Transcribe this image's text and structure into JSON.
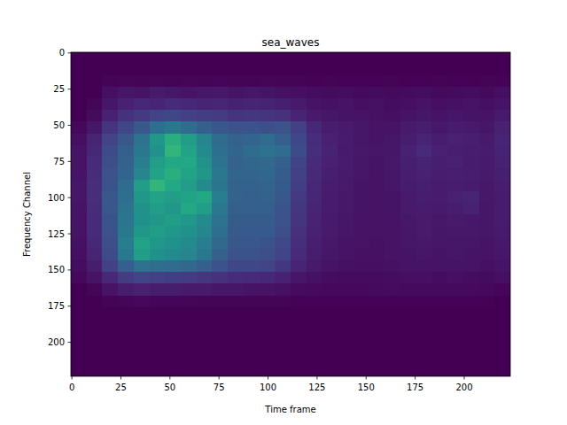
{
  "chart_data": {
    "type": "heatmap",
    "title": "sea_waves",
    "x_label": "Time frame",
    "y_label": "Frequency Channel",
    "xlim": [
      -0.5,
      223.5
    ],
    "ylim": [
      223.5,
      -0.5
    ],
    "xticks": [
      0,
      25,
      50,
      75,
      100,
      125,
      150,
      175,
      200
    ],
    "yticks": [
      0,
      25,
      50,
      75,
      100,
      125,
      150,
      175,
      200
    ],
    "x_bins": [
      -0.5,
      7.5,
      15.5,
      23.5,
      31.5,
      39.5,
      47.5,
      55.5,
      63.5,
      71.5,
      79.5,
      87.5,
      95.5,
      103.5,
      111.5,
      119.5,
      127.5,
      135.5,
      143.5,
      151.5,
      159.5,
      167.5,
      175.5,
      183.5,
      191.5,
      199.5,
      207.5,
      215.5,
      223.5
    ],
    "y_bins": [
      -0.5,
      7.5,
      15.5,
      23.5,
      31.5,
      39.5,
      47.5,
      55.5,
      63.5,
      71.5,
      79.5,
      87.5,
      95.5,
      103.5,
      111.5,
      119.5,
      127.5,
      135.5,
      143.5,
      151.5,
      159.5,
      167.5,
      175.5,
      183.5,
      191.5,
      199.5,
      207.5,
      215.5,
      223.5
    ],
    "color_range": [
      0,
      2
    ],
    "cells": [
      [
        0,
        0,
        0,
        0,
        0,
        0,
        0,
        0,
        0,
        0,
        0,
        0,
        0,
        0,
        0,
        0,
        0,
        0,
        0,
        0,
        0,
        0,
        0,
        0,
        0,
        0,
        0,
        0
      ],
      [
        0,
        0,
        0,
        0,
        0,
        0,
        0,
        0,
        0,
        0,
        0,
        0,
        0,
        0,
        0,
        0,
        0,
        0,
        0,
        0,
        0,
        0,
        0,
        0,
        0,
        0,
        0,
        0
      ],
      [
        0,
        0,
        0.02,
        0.03,
        0.02,
        0.03,
        0.02,
        0.03,
        0.02,
        0.03,
        0.02,
        0.02,
        0.03,
        0.02,
        0.02,
        0.01,
        0.02,
        0.01,
        0.01,
        0.01,
        0.02,
        0.01,
        0.01,
        0.02,
        0.01,
        0.01,
        0.02,
        0.01
      ],
      [
        0,
        0,
        0.08,
        0.12,
        0.1,
        0.14,
        0.12,
        0.1,
        0.12,
        0.13,
        0.1,
        0.12,
        0.11,
        0.09,
        0.08,
        0.07,
        0.06,
        0.07,
        0.05,
        0.06,
        0.05,
        0.06,
        0.07,
        0.05,
        0.06,
        0.07,
        0.05,
        0.08
      ],
      [
        0,
        0.03,
        0.12,
        0.18,
        0.22,
        0.2,
        0.24,
        0.22,
        0.2,
        0.21,
        0.18,
        0.2,
        0.19,
        0.17,
        0.14,
        0.1,
        0.09,
        0.1,
        0.08,
        0.09,
        0.07,
        0.08,
        0.1,
        0.08,
        0.09,
        0.1,
        0.08,
        0.11
      ],
      [
        0,
        0.06,
        0.18,
        0.28,
        0.34,
        0.4,
        0.42,
        0.38,
        0.36,
        0.35,
        0.3,
        0.32,
        0.3,
        0.28,
        0.2,
        0.14,
        0.12,
        0.11,
        0.1,
        0.09,
        0.08,
        0.11,
        0.12,
        0.1,
        0.12,
        0.11,
        0.1,
        0.14
      ],
      [
        0.04,
        0.12,
        0.3,
        0.42,
        0.55,
        0.72,
        0.8,
        0.7,
        0.6,
        0.55,
        0.5,
        0.5,
        0.48,
        0.5,
        0.38,
        0.22,
        0.16,
        0.14,
        0.12,
        0.1,
        0.1,
        0.14,
        0.16,
        0.13,
        0.15,
        0.14,
        0.12,
        0.18
      ],
      [
        0.08,
        0.2,
        0.4,
        0.55,
        0.75,
        1.05,
        1.25,
        1.1,
        0.9,
        0.7,
        0.62,
        0.65,
        0.7,
        0.6,
        0.42,
        0.25,
        0.18,
        0.15,
        0.12,
        0.11,
        0.12,
        0.16,
        0.2,
        0.16,
        0.18,
        0.17,
        0.14,
        0.2
      ],
      [
        0.1,
        0.22,
        0.45,
        0.6,
        0.8,
        1.0,
        1.3,
        1.15,
        0.95,
        0.72,
        0.65,
        0.7,
        0.75,
        0.7,
        0.45,
        0.26,
        0.19,
        0.14,
        0.13,
        0.12,
        0.12,
        0.18,
        0.24,
        0.18,
        0.17,
        0.16,
        0.15,
        0.19
      ],
      [
        0.1,
        0.24,
        0.48,
        0.62,
        0.85,
        1.1,
        1.2,
        1.2,
        1.0,
        0.75,
        0.62,
        0.66,
        0.68,
        0.6,
        0.4,
        0.24,
        0.18,
        0.15,
        0.12,
        0.11,
        0.13,
        0.17,
        0.19,
        0.17,
        0.18,
        0.15,
        0.14,
        0.18
      ],
      [
        0.11,
        0.25,
        0.5,
        0.65,
        0.9,
        1.15,
        1.25,
        1.15,
        1.05,
        0.8,
        0.64,
        0.64,
        0.66,
        0.58,
        0.38,
        0.23,
        0.17,
        0.14,
        0.12,
        0.1,
        0.12,
        0.16,
        0.18,
        0.16,
        0.17,
        0.16,
        0.14,
        0.17
      ],
      [
        0.12,
        0.26,
        0.52,
        0.7,
        1.1,
        1.3,
        1.2,
        1.1,
        0.95,
        0.78,
        0.63,
        0.62,
        0.64,
        0.56,
        0.36,
        0.22,
        0.16,
        0.14,
        0.11,
        0.1,
        0.12,
        0.15,
        0.17,
        0.15,
        0.16,
        0.15,
        0.13,
        0.16
      ],
      [
        0.12,
        0.26,
        0.55,
        0.72,
        1.05,
        1.15,
        1.1,
        1.15,
        1.2,
        0.85,
        0.62,
        0.6,
        0.62,
        0.55,
        0.34,
        0.21,
        0.15,
        0.13,
        0.11,
        0.1,
        0.11,
        0.14,
        0.16,
        0.15,
        0.18,
        0.2,
        0.13,
        0.15
      ],
      [
        0.11,
        0.25,
        0.55,
        0.75,
        1.0,
        1.1,
        1.05,
        1.2,
        1.1,
        0.8,
        0.6,
        0.6,
        0.6,
        0.52,
        0.32,
        0.2,
        0.15,
        0.13,
        0.11,
        0.1,
        0.11,
        0.14,
        0.15,
        0.14,
        0.16,
        0.18,
        0.12,
        0.15
      ],
      [
        0.1,
        0.24,
        0.52,
        0.78,
        1.0,
        1.05,
        1.1,
        1.05,
        0.95,
        0.75,
        0.58,
        0.58,
        0.58,
        0.5,
        0.3,
        0.19,
        0.14,
        0.12,
        0.1,
        0.1,
        0.1,
        0.13,
        0.14,
        0.13,
        0.14,
        0.13,
        0.12,
        0.15
      ],
      [
        0.1,
        0.24,
        0.5,
        0.8,
        1.05,
        1.1,
        1.05,
        1.0,
        0.9,
        0.72,
        0.56,
        0.56,
        0.56,
        0.48,
        0.28,
        0.18,
        0.14,
        0.12,
        0.1,
        0.1,
        0.1,
        0.12,
        0.14,
        0.12,
        0.13,
        0.13,
        0.12,
        0.14
      ],
      [
        0.09,
        0.22,
        0.48,
        0.85,
        1.15,
        1.05,
        1.0,
        0.95,
        0.85,
        0.68,
        0.54,
        0.54,
        0.52,
        0.44,
        0.26,
        0.17,
        0.13,
        0.11,
        0.1,
        0.09,
        0.1,
        0.12,
        0.13,
        0.12,
        0.12,
        0.12,
        0.11,
        0.13
      ],
      [
        0.08,
        0.2,
        0.45,
        0.8,
        1.1,
        1.0,
        0.95,
        0.9,
        0.8,
        0.62,
        0.5,
        0.5,
        0.48,
        0.4,
        0.24,
        0.16,
        0.12,
        0.1,
        0.09,
        0.09,
        0.1,
        0.11,
        0.12,
        0.11,
        0.12,
        0.11,
        0.1,
        0.12
      ],
      [
        0.07,
        0.16,
        0.38,
        0.6,
        0.75,
        0.72,
        0.7,
        0.68,
        0.6,
        0.5,
        0.42,
        0.42,
        0.4,
        0.32,
        0.2,
        0.14,
        0.1,
        0.09,
        0.08,
        0.08,
        0.09,
        0.1,
        0.11,
        0.1,
        0.11,
        0.1,
        0.09,
        0.11
      ],
      [
        0.04,
        0.1,
        0.22,
        0.35,
        0.4,
        0.38,
        0.36,
        0.35,
        0.32,
        0.28,
        0.25,
        0.24,
        0.22,
        0.18,
        0.12,
        0.09,
        0.07,
        0.06,
        0.06,
        0.06,
        0.07,
        0.08,
        0.08,
        0.07,
        0.08,
        0.07,
        0.06,
        0.08
      ],
      [
        0,
        0.03,
        0.1,
        0.16,
        0.18,
        0.16,
        0.16,
        0.14,
        0.14,
        0.12,
        0.12,
        0.11,
        0.1,
        0.09,
        0.06,
        0.05,
        0.04,
        0.04,
        0.04,
        0.05,
        0.06,
        0.05,
        0.05,
        0.05,
        0.05,
        0.05,
        0.04,
        0.03
      ],
      [
        0,
        0,
        0.02,
        0.03,
        0.04,
        0.03,
        0.03,
        0.03,
        0.02,
        0.02,
        0.02,
        0.02,
        0.02,
        0.02,
        0.01,
        0.01,
        0.01,
        0.01,
        0.01,
        0.01,
        0.01,
        0.01,
        0.01,
        0.01,
        0.01,
        0.01,
        0.01,
        0
      ],
      [
        0,
        0,
        0,
        0,
        0,
        0,
        0,
        0,
        0,
        0,
        0,
        0,
        0,
        0,
        0,
        0,
        0,
        0,
        0,
        0,
        0,
        0,
        0,
        0,
        0,
        0,
        0,
        0
      ],
      [
        0,
        0,
        0,
        0,
        0,
        0,
        0,
        0,
        0,
        0,
        0,
        0,
        0,
        0,
        0,
        0,
        0,
        0,
        0,
        0,
        0,
        0,
        0,
        0,
        0,
        0,
        0,
        0
      ],
      [
        0,
        0,
        0,
        0,
        0,
        0,
        0,
        0,
        0,
        0,
        0,
        0,
        0,
        0,
        0,
        0,
        0,
        0,
        0,
        0,
        0,
        0,
        0,
        0,
        0,
        0,
        0,
        0
      ],
      [
        0,
        0,
        0,
        0,
        0,
        0,
        0,
        0,
        0,
        0,
        0,
        0,
        0,
        0,
        0,
        0,
        0,
        0,
        0,
        0,
        0,
        0,
        0,
        0,
        0,
        0,
        0,
        0
      ],
      [
        0,
        0,
        0,
        0,
        0,
        0,
        0,
        0,
        0,
        0,
        0,
        0,
        0,
        0,
        0,
        0,
        0,
        0,
        0,
        0,
        0,
        0,
        0,
        0,
        0,
        0,
        0,
        0
      ],
      [
        0,
        0,
        0,
        0,
        0,
        0,
        0,
        0,
        0,
        0,
        0,
        0,
        0,
        0,
        0,
        0,
        0,
        0,
        0,
        0,
        0,
        0,
        0,
        0,
        0,
        0,
        0,
        0
      ]
    ]
  }
}
